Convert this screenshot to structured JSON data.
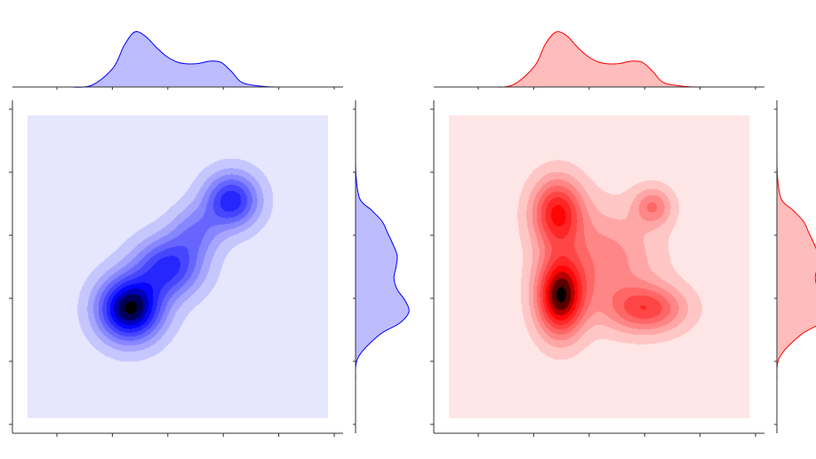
{
  "chart_data": [
    {
      "type": "kde_joint",
      "title": "",
      "xlabel": "",
      "ylabel": "",
      "color": "#0000ff",
      "fill_color": "#b8b8ff",
      "xlim": [
        0,
        1
      ],
      "ylim": [
        0,
        1
      ],
      "grid": false,
      "levels": 10,
      "density_peaks": [
        {
          "x": 0.34,
          "y": 0.36,
          "weight": 1.0,
          "sx": 0.075,
          "sy": 0.075
        },
        {
          "x": 0.47,
          "y": 0.5,
          "weight": 0.6,
          "sx": 0.08,
          "sy": 0.07
        },
        {
          "x": 0.68,
          "y": 0.72,
          "weight": 0.65,
          "sx": 0.065,
          "sy": 0.065
        },
        {
          "x": 0.56,
          "y": 0.62,
          "weight": 0.3,
          "sx": 0.06,
          "sy": 0.06
        }
      ],
      "marginal_x": {
        "x": [
          0.0,
          0.1,
          0.2,
          0.25,
          0.3,
          0.35,
          0.4,
          0.45,
          0.5,
          0.55,
          0.6,
          0.65,
          0.7,
          0.75,
          0.8,
          0.9,
          1.0
        ],
        "density": [
          0.0,
          0.03,
          0.35,
          0.75,
          1.0,
          0.92,
          0.72,
          0.55,
          0.45,
          0.42,
          0.43,
          0.47,
          0.45,
          0.28,
          0.08,
          0.01,
          0.0
        ]
      },
      "marginal_y": {
        "y": [
          0.0,
          0.1,
          0.2,
          0.25,
          0.3,
          0.35,
          0.4,
          0.45,
          0.5,
          0.55,
          0.6,
          0.65,
          0.7,
          0.75,
          0.8,
          0.9,
          1.0
        ],
        "density": [
          0.0,
          0.05,
          0.45,
          0.82,
          1.0,
          0.93,
          0.78,
          0.72,
          0.76,
          0.78,
          0.7,
          0.6,
          0.5,
          0.3,
          0.08,
          0.01,
          0.0
        ]
      }
    },
    {
      "type": "kde_joint",
      "title": "",
      "xlabel": "",
      "ylabel": "",
      "color": "#ff0000",
      "fill_color": "#ffb8b8",
      "xlim": [
        0,
        1
      ],
      "ylim": [
        0,
        1
      ],
      "grid": false,
      "levels": 10,
      "density_peaks": [
        {
          "x": 0.37,
          "y": 0.4,
          "weight": 1.0,
          "sx": 0.055,
          "sy": 0.09
        },
        {
          "x": 0.36,
          "y": 0.68,
          "weight": 0.72,
          "sx": 0.06,
          "sy": 0.08
        },
        {
          "x": 0.66,
          "y": 0.36,
          "weight": 0.55,
          "sx": 0.09,
          "sy": 0.055
        },
        {
          "x": 0.68,
          "y": 0.7,
          "weight": 0.38,
          "sx": 0.045,
          "sy": 0.045
        },
        {
          "x": 0.52,
          "y": 0.52,
          "weight": 0.35,
          "sx": 0.12,
          "sy": 0.12
        }
      ],
      "marginal_x": {
        "x": [
          0.0,
          0.1,
          0.2,
          0.25,
          0.3,
          0.35,
          0.4,
          0.45,
          0.5,
          0.55,
          0.6,
          0.65,
          0.7,
          0.75,
          0.8,
          0.9,
          1.0
        ],
        "density": [
          0.0,
          0.04,
          0.38,
          0.78,
          1.0,
          0.93,
          0.72,
          0.55,
          0.45,
          0.42,
          0.43,
          0.47,
          0.45,
          0.28,
          0.08,
          0.01,
          0.0
        ]
      },
      "marginal_y": {
        "y": [
          0.0,
          0.1,
          0.2,
          0.25,
          0.3,
          0.35,
          0.4,
          0.45,
          0.5,
          0.55,
          0.6,
          0.65,
          0.7,
          0.75,
          0.8,
          0.9,
          1.0
        ],
        "density": [
          0.0,
          0.05,
          0.45,
          0.82,
          1.0,
          0.93,
          0.78,
          0.72,
          0.76,
          0.78,
          0.7,
          0.6,
          0.5,
          0.3,
          0.08,
          0.01,
          0.0
        ]
      }
    }
  ]
}
